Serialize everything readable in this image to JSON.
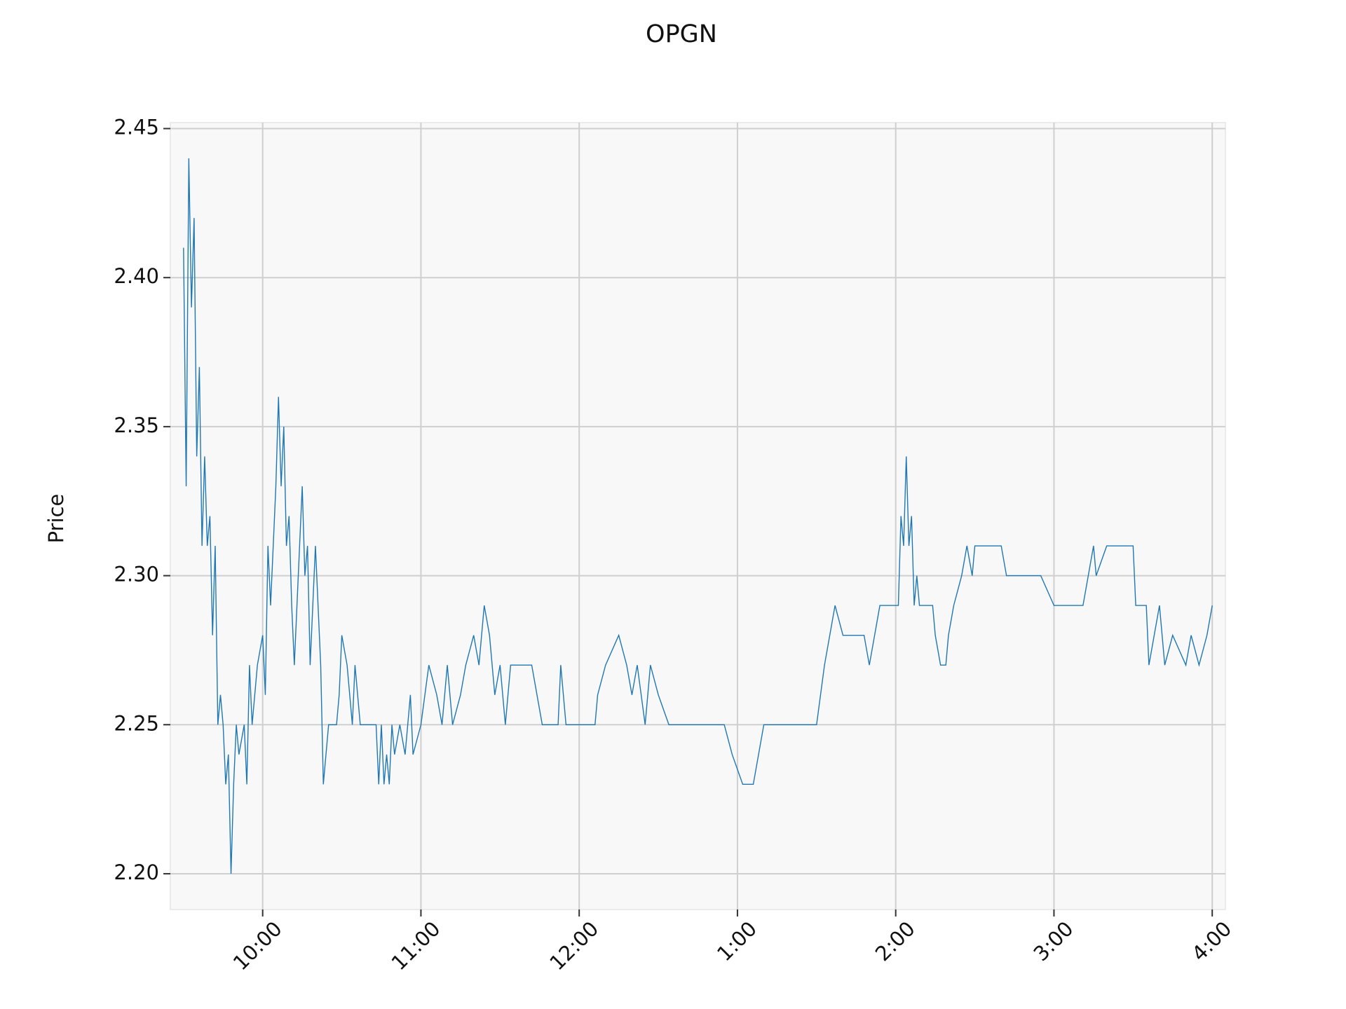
{
  "chart_data": {
    "type": "line",
    "title": "OPGN",
    "y_label": "Price",
    "x": [
      570,
      571,
      572,
      573,
      574,
      575,
      576,
      577,
      578,
      579,
      580,
      581,
      582,
      583,
      584,
      585,
      586,
      587,
      588,
      589,
      590,
      591,
      593,
      594,
      595,
      596,
      598,
      600,
      601,
      602,
      603,
      605,
      606,
      607,
      608,
      609,
      610,
      611,
      612,
      614,
      615,
      616,
      617,
      618,
      620,
      621,
      622,
      623,
      624,
      625,
      628,
      629,
      630,
      632,
      634,
      635,
      637,
      643,
      644,
      645,
      646,
      647,
      648,
      649,
      650,
      652,
      654,
      656,
      657,
      660,
      663,
      666,
      668,
      670,
      672,
      675,
      677,
      680,
      682,
      684,
      686,
      688,
      690,
      692,
      694,
      702,
      706,
      712,
      713,
      715,
      726,
      727,
      730,
      735,
      738,
      740,
      742,
      745,
      747,
      750,
      754,
      775,
      778,
      782,
      786,
      790,
      810,
      813,
      817,
      820,
      828,
      830,
      832,
      834,
      836,
      841,
      842,
      843,
      844,
      845,
      846,
      847,
      848,
      849,
      854,
      855,
      857,
      859,
      860,
      862,
      865,
      867,
      869,
      870,
      880,
      882,
      895,
      900,
      911,
      913,
      915,
      916,
      920,
      930,
      931,
      935,
      936,
      938,
      940,
      942,
      945,
      950,
      952,
      955,
      958,
      960
    ],
    "series": [
      {
        "name": "OPGN",
        "color": "#1f77b4",
        "values": [
          2.41,
          2.33,
          2.44,
          2.39,
          2.42,
          2.34,
          2.37,
          2.31,
          2.34,
          2.31,
          2.32,
          2.28,
          2.31,
          2.25,
          2.26,
          2.25,
          2.23,
          2.24,
          2.2,
          2.23,
          2.25,
          2.24,
          2.25,
          2.23,
          2.27,
          2.25,
          2.27,
          2.28,
          2.26,
          2.31,
          2.29,
          2.33,
          2.36,
          2.33,
          2.35,
          2.31,
          2.32,
          2.29,
          2.27,
          2.31,
          2.33,
          2.3,
          2.31,
          2.27,
          2.31,
          2.29,
          2.27,
          2.23,
          2.24,
          2.25,
          2.25,
          2.26,
          2.28,
          2.27,
          2.25,
          2.27,
          2.25,
          2.25,
          2.23,
          2.25,
          2.23,
          2.24,
          2.23,
          2.25,
          2.24,
          2.25,
          2.24,
          2.26,
          2.24,
          2.25,
          2.27,
          2.26,
          2.25,
          2.27,
          2.25,
          2.26,
          2.27,
          2.28,
          2.27,
          2.29,
          2.28,
          2.26,
          2.27,
          2.25,
          2.27,
          2.27,
          2.25,
          2.25,
          2.27,
          2.25,
          2.25,
          2.26,
          2.27,
          2.28,
          2.27,
          2.26,
          2.27,
          2.25,
          2.27,
          2.26,
          2.25,
          2.25,
          2.24,
          2.23,
          2.23,
          2.25,
          2.25,
          2.27,
          2.29,
          2.28,
          2.28,
          2.27,
          2.28,
          2.29,
          2.29,
          2.29,
          2.32,
          2.31,
          2.34,
          2.31,
          2.32,
          2.29,
          2.3,
          2.29,
          2.29,
          2.28,
          2.27,
          2.27,
          2.28,
          2.29,
          2.3,
          2.31,
          2.3,
          2.31,
          2.31,
          2.3,
          2.3,
          2.29,
          2.29,
          2.3,
          2.31,
          2.3,
          2.31,
          2.31,
          2.29,
          2.29,
          2.27,
          2.28,
          2.29,
          2.27,
          2.28,
          2.27,
          2.28,
          2.27,
          2.28,
          2.29
        ]
      }
    ],
    "xlim": [
      565,
      965
    ],
    "xticks": [
      {
        "value": 600,
        "label": "10:00"
      },
      {
        "value": 660,
        "label": "11:00"
      },
      {
        "value": 720,
        "label": "12:00"
      },
      {
        "value": 780,
        "label": "1:00"
      },
      {
        "value": 840,
        "label": "2:00"
      },
      {
        "value": 900,
        "label": "3:00"
      },
      {
        "value": 960,
        "label": "4:00"
      }
    ],
    "ylim": [
      2.188,
      2.452
    ],
    "yticks": [
      {
        "value": 2.2,
        "label": "2.20"
      },
      2.25,
      {
        "value": 2.3,
        "label": "2.30"
      },
      2.35,
      {
        "value": 2.4,
        "label": "2.40"
      },
      2.45
    ],
    "grid": true
  }
}
